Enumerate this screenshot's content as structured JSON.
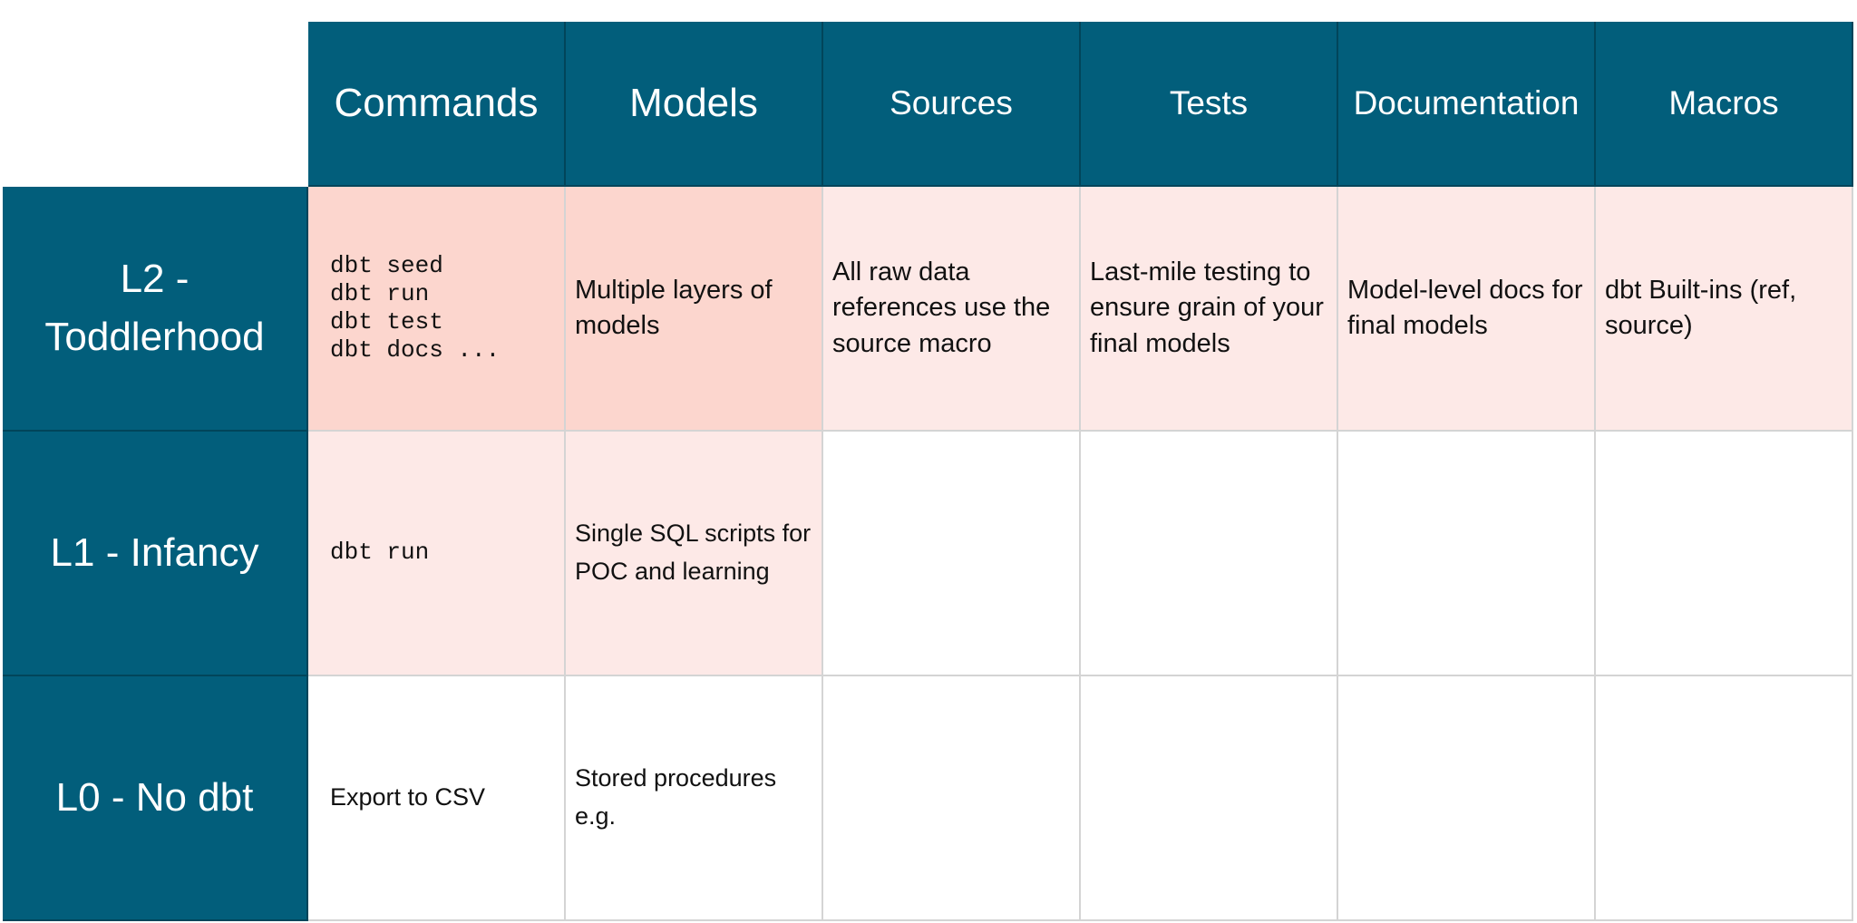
{
  "header": {
    "columns": [
      "Commands",
      "Models",
      "Sources",
      "Tests",
      "Documentation",
      "Macros"
    ]
  },
  "rows": [
    {
      "label": "L2 - Toddlerhood",
      "cells": [
        "dbt seed\ndbt run\ndbt test\ndbt docs ...",
        "Multiple layers of models",
        "All raw data references use the source macro",
        "Last-mile testing to ensure grain of your final models",
        "Model-level docs for final models",
        "dbt Built-ins (ref, source)"
      ]
    },
    {
      "label": "L1 - Infancy",
      "cells": [
        "dbt run",
        "Single SQL scripts for POC and learning"
      ]
    },
    {
      "label": "L0 - No dbt",
      "cells": [
        "Export to CSV",
        "Stored procedures e.g."
      ]
    }
  ]
}
